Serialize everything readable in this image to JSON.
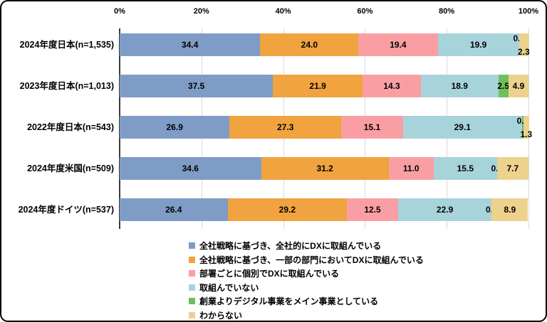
{
  "chart_data": {
    "type": "bar",
    "orientation": "horizontal",
    "stacked": true,
    "title": "",
    "grid": true,
    "legend_position": "bottom",
    "x_axis": {
      "range": [
        0,
        100
      ],
      "ticks": [
        "0%",
        "20%",
        "40%",
        "60%",
        "80%",
        "100%"
      ]
    },
    "categories": [
      "2024年度日本(n=1,535)",
      "2023年度日本(n=1,013)",
      "2022年度日本(n=543)",
      "2024年度米国(n=509)",
      "2024年度ドイツ(n=537)"
    ],
    "series": [
      {
        "name": "全社戦略に基づき、全社的にDXに取組んでいる",
        "color": "#7E9CC6",
        "values": [
          34.4,
          37.5,
          26.9,
          34.6,
          26.4
        ]
      },
      {
        "name": "全社戦略に基づき、一部の部門においてDXに取組んでいる",
        "color": "#F0A33E",
        "values": [
          24.0,
          21.9,
          27.3,
          31.2,
          29.2
        ]
      },
      {
        "name": "部署ごとに個別でDXに取組んでいる",
        "color": "#F99FA4",
        "values": [
          19.4,
          14.3,
          15.1,
          11.0,
          12.5
        ]
      },
      {
        "name": "取組んでいない",
        "color": "#A7D3DB",
        "values": [
          19.9,
          18.9,
          29.1,
          15.5,
          22.9
        ]
      },
      {
        "name": "創業よりデジタル事業をメイン事業としている",
        "color": "#6FBF5A",
        "values": [
          0.0,
          2.5,
          0.4,
          0.0,
          0.0
        ]
      },
      {
        "name": "わからない",
        "color": "#ECD28D",
        "values": [
          2.3,
          4.9,
          1.3,
          7.7,
          8.9
        ]
      }
    ],
    "colors": {
      "gridline": "#d9d9d9",
      "axis_line": "#3b3b3b",
      "text": "#000000",
      "background": "#ffffff",
      "border": "#000000"
    }
  }
}
